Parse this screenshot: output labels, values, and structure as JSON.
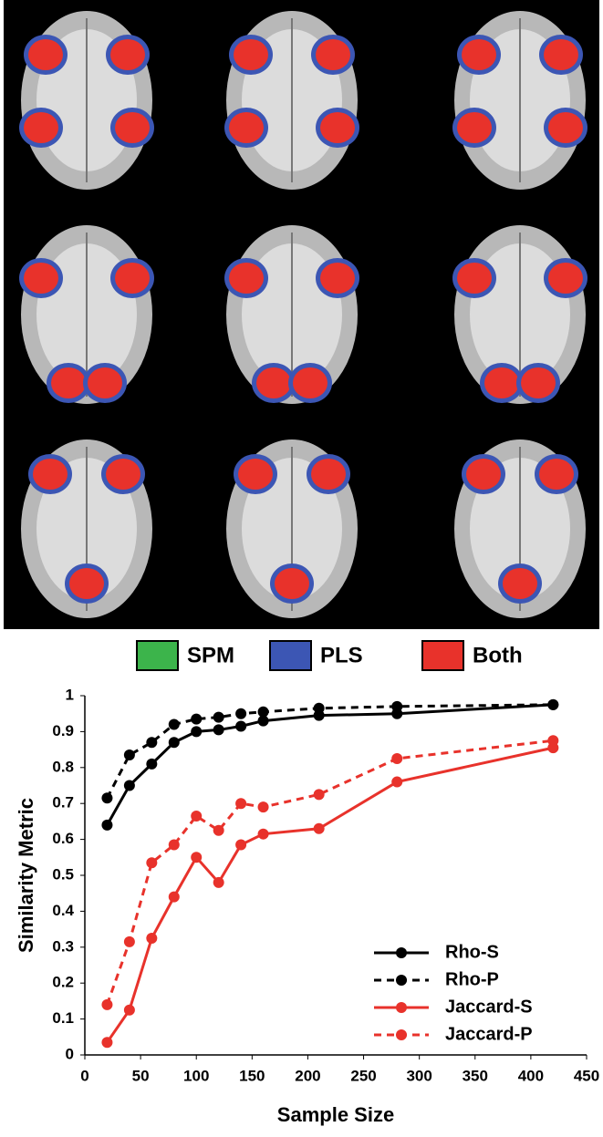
{
  "brain_legend": [
    {
      "name": "SPM",
      "color": "#3cb44b"
    },
    {
      "name": "PLS",
      "color": "#3c56b4"
    },
    {
      "name": "Both",
      "color": "#e8322b"
    }
  ],
  "chart_data": {
    "type": "line",
    "x_label": "Sample Size",
    "y_label": "Similarity Metric",
    "x": [
      20,
      40,
      60,
      80,
      100,
      120,
      140,
      160,
      210,
      280,
      420
    ],
    "series": [
      {
        "name": "Rho-S",
        "color": "#000000",
        "style": "solid",
        "values": [
          0.64,
          0.75,
          0.81,
          0.87,
          0.9,
          0.905,
          0.915,
          0.93,
          0.945,
          0.95,
          0.975
        ]
      },
      {
        "name": "Rho-P",
        "color": "#000000",
        "style": "dashed",
        "values": [
          0.715,
          0.835,
          0.87,
          0.92,
          0.935,
          0.94,
          0.95,
          0.955,
          0.965,
          0.97,
          0.975
        ]
      },
      {
        "name": "Jaccard-S",
        "color": "#e8322b",
        "style": "solid",
        "values": [
          0.035,
          0.125,
          0.325,
          0.44,
          0.55,
          0.48,
          0.585,
          0.615,
          0.63,
          0.76,
          0.855
        ]
      },
      {
        "name": "Jaccard-P",
        "color": "#e8322b",
        "style": "dashed",
        "values": [
          0.14,
          0.315,
          0.535,
          0.585,
          0.665,
          0.625,
          0.7,
          0.69,
          0.725,
          0.825,
          0.875
        ]
      }
    ],
    "xlim": [
      0,
      450
    ],
    "xticks": [
      0,
      50,
      100,
      150,
      200,
      250,
      300,
      350,
      400,
      450
    ],
    "ylim": [
      0,
      1
    ],
    "yticks": [
      0,
      0.1,
      0.2,
      0.3,
      0.4,
      0.5,
      0.6,
      0.7,
      0.8,
      0.9,
      1
    ],
    "grid": false,
    "legend": "lower-right"
  }
}
